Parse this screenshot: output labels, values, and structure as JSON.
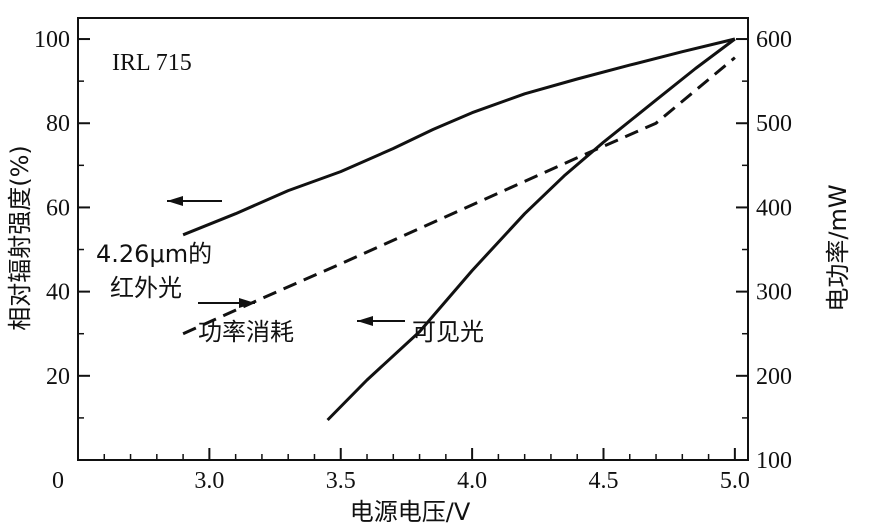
{
  "chart_data": {
    "type": "line",
    "title": "",
    "xlabel": "电源电压/V",
    "ylabel_left": "相对辐射强度(%)",
    "ylabel_right": "电功率/mW",
    "xlim": [
      2.5,
      5.05
    ],
    "ylim_left": [
      0,
      105
    ],
    "ylim_right": [
      100,
      625
    ],
    "x_ticks": [
      {
        "value": 3.0,
        "label": "3.0"
      },
      {
        "value": 3.5,
        "label": "3.5"
      },
      {
        "value": 4.0,
        "label": "4.0"
      },
      {
        "value": 4.5,
        "label": "4.5"
      },
      {
        "value": 5.0,
        "label": "5.0"
      }
    ],
    "x_origin_label": "0",
    "y_left_ticks": [
      {
        "value": 20,
        "label": "20"
      },
      {
        "value": 40,
        "label": "40"
      },
      {
        "value": 60,
        "label": "60"
      },
      {
        "value": 80,
        "label": "80"
      },
      {
        "value": 100,
        "label": "100"
      }
    ],
    "y_right_ticks": [
      {
        "value": 100,
        "label": "100"
      },
      {
        "value": 200,
        "label": "200"
      },
      {
        "value": 300,
        "label": "300"
      },
      {
        "value": 400,
        "label": "400"
      },
      {
        "value": 500,
        "label": "500"
      },
      {
        "value": 600,
        "label": "600"
      }
    ],
    "grid": false,
    "series": [
      {
        "axis": "left",
        "style": "solid",
        "x": [
          2.9,
          3.1,
          3.3,
          3.5,
          3.7,
          3.85,
          4.0,
          4.2,
          4.4,
          4.6,
          4.8,
          5.0
        ],
        "y": [
          53.5,
          58.5,
          64,
          68.5,
          74,
          78.5,
          82.5,
          87,
          90.5,
          93.8,
          97,
          100
        ]
      },
      {
        "axis": "right",
        "style": "dashed",
        "x": [
          2.9,
          3.2,
          3.5,
          3.8,
          4.1,
          4.4,
          4.7,
          5.0
        ],
        "y": [
          250,
          292,
          333,
          375,
          417,
          459,
          500,
          578
        ]
      },
      {
        "axis": "left",
        "style": "solid",
        "x": [
          3.45,
          3.6,
          3.8,
          4.0,
          4.2,
          4.35,
          4.5,
          4.7,
          4.85,
          5.0
        ],
        "y": [
          9.5,
          19,
          30.5,
          45,
          58.5,
          67.5,
          75.5,
          85.5,
          93,
          100
        ]
      }
    ],
    "annotations": {
      "model": "IRL 715",
      "ir_line1": "4.26μm的",
      "ir_line2": "红外光",
      "power": "功率消耗",
      "visible": "可见光"
    }
  }
}
